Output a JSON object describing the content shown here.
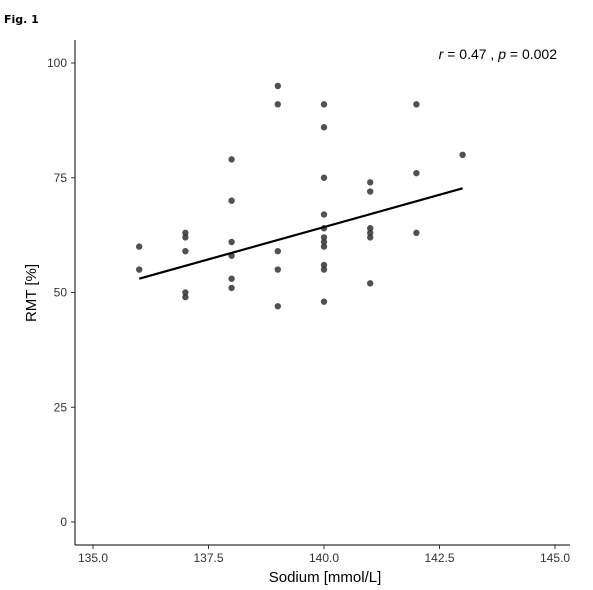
{
  "figure_label": "Fig. 1",
  "chart_data": {
    "type": "scatter",
    "xlabel": "Sodium [mmol/L]",
    "ylabel": "RMT [%]",
    "xlim": [
      135,
      145
    ],
    "ylim": [
      0,
      100
    ],
    "xticks": [
      "135.0",
      "137.5",
      "140.0",
      "142.5",
      "145.0"
    ],
    "yticks": [
      "0",
      "25",
      "50",
      "75",
      "100"
    ],
    "annotation": {
      "r_symbol": "r",
      "r_text": " = 0.47 , ",
      "p_symbol": "p",
      "p_text": " = 0.002"
    },
    "grid": false,
    "points": [
      {
        "x": 136,
        "y": 60
      },
      {
        "x": 136,
        "y": 55
      },
      {
        "x": 137,
        "y": 63
      },
      {
        "x": 137,
        "y": 62
      },
      {
        "x": 137,
        "y": 59
      },
      {
        "x": 137,
        "y": 50
      },
      {
        "x": 137,
        "y": 49
      },
      {
        "x": 138,
        "y": 79
      },
      {
        "x": 138,
        "y": 70
      },
      {
        "x": 138,
        "y": 61
      },
      {
        "x": 138,
        "y": 58
      },
      {
        "x": 138,
        "y": 53
      },
      {
        "x": 138,
        "y": 51
      },
      {
        "x": 139,
        "y": 95
      },
      {
        "x": 139,
        "y": 91
      },
      {
        "x": 139,
        "y": 59
      },
      {
        "x": 139,
        "y": 55
      },
      {
        "x": 139,
        "y": 47
      },
      {
        "x": 140,
        "y": 91
      },
      {
        "x": 140,
        "y": 86
      },
      {
        "x": 140,
        "y": 75
      },
      {
        "x": 140,
        "y": 67
      },
      {
        "x": 140,
        "y": 64
      },
      {
        "x": 140,
        "y": 62
      },
      {
        "x": 140,
        "y": 61
      },
      {
        "x": 140,
        "y": 60
      },
      {
        "x": 140,
        "y": 56
      },
      {
        "x": 140,
        "y": 55
      },
      {
        "x": 140,
        "y": 48
      },
      {
        "x": 141,
        "y": 74
      },
      {
        "x": 141,
        "y": 72
      },
      {
        "x": 141,
        "y": 64
      },
      {
        "x": 141,
        "y": 63
      },
      {
        "x": 141,
        "y": 62
      },
      {
        "x": 141,
        "y": 52
      },
      {
        "x": 142,
        "y": 91
      },
      {
        "x": 142,
        "y": 76
      },
      {
        "x": 142,
        "y": 63
      },
      {
        "x": 143,
        "y": 80
      }
    ],
    "fit_line": {
      "x": [
        136,
        143
      ],
      "y": [
        53,
        72.7
      ],
      "color": "#000000"
    },
    "point_color": "#333333"
  }
}
